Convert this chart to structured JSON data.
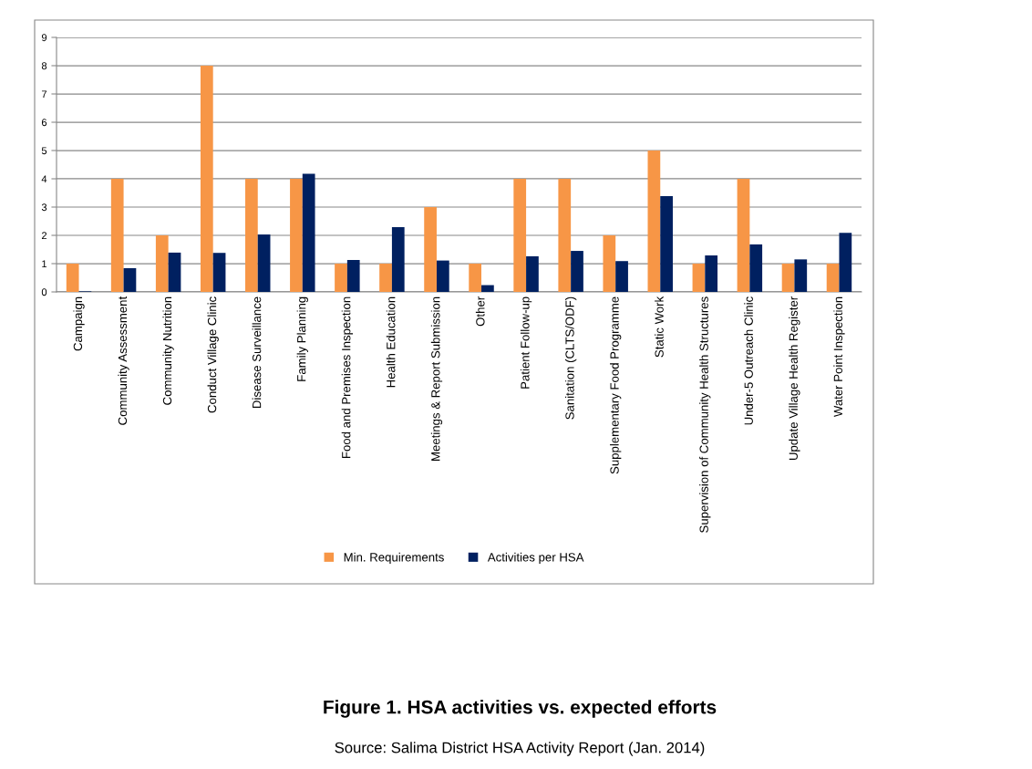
{
  "chart_data": {
    "type": "bar",
    "title": "Figure 1. HSA activities vs. expected efforts",
    "annotations": [
      "Source: Salima District HSA Activity Report (Jan. 2014)"
    ],
    "categories": [
      "Campaign",
      "Community Assessment",
      "Community Nutrition",
      "Conduct Village Clinic",
      "Disease Surveillance",
      "Family Planning",
      "Food and Premises Inspection",
      "Health Education",
      "Meetings & Report Submission",
      "Other",
      "Patient Follow-up",
      "Sanitation (CLTS/ODF)",
      "Supplementary Food Programme",
      "Static Work",
      "Supervision of Community Health Structures",
      "Under-5 Outreach Clinic",
      "Update Village Health Register",
      "Water Point Inspection"
    ],
    "series": [
      {
        "name": "Min. Requirements",
        "color": "#f79646",
        "values": [
          1,
          4,
          2,
          8,
          4,
          4,
          1,
          1,
          3,
          1,
          4,
          4,
          2,
          5,
          1,
          4,
          1,
          1
        ]
      },
      {
        "name": "Activities per HSA",
        "color": "#002060",
        "values": [
          0.02,
          0.84,
          1.39,
          1.38,
          2.03,
          4.18,
          1.13,
          2.29,
          1.11,
          0.24,
          1.26,
          1.45,
          1.09,
          3.39,
          1.29,
          1.68,
          1.15,
          2.09
        ]
      }
    ],
    "ylim": [
      0,
      9
    ],
    "yticks": [
      0,
      1,
      2,
      3,
      4,
      5,
      6,
      7,
      8,
      9
    ],
    "grid": "y",
    "legend": "bottom"
  }
}
